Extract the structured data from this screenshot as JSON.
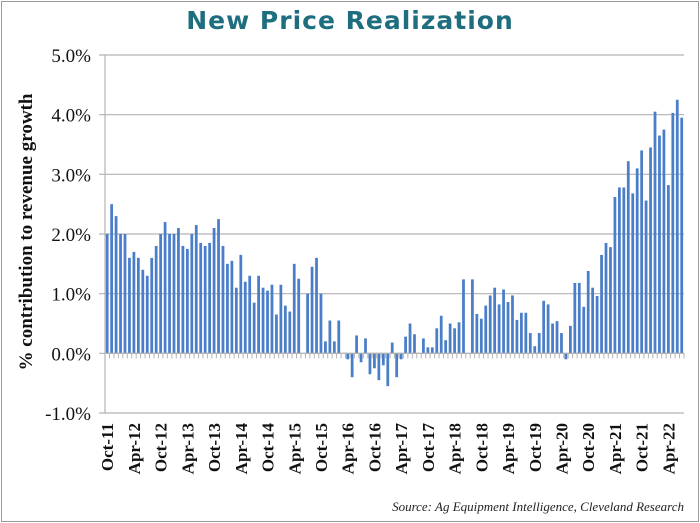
{
  "chart_data": {
    "type": "bar",
    "title": "New Price Realization",
    "xlabel": "",
    "ylabel": "% contribution to revenue growth",
    "ylim": [
      -1.0,
      5.0
    ],
    "yticks": [
      -1.0,
      0.0,
      1.0,
      2.0,
      3.0,
      4.0,
      5.0
    ],
    "ytick_labels": [
      "-1.0%",
      "0.0%",
      "1.0%",
      "2.0%",
      "3.0%",
      "4.0%",
      "5.0%"
    ],
    "grid": true,
    "legend": "none",
    "bar_color": "#4a7ec8",
    "x_start": "Oct-11",
    "x_frequency": "monthly",
    "xtick_labels": [
      "Oct-11",
      "Apr-12",
      "Oct-12",
      "Apr-13",
      "Oct-13",
      "Apr-14",
      "Oct-14",
      "Apr-15",
      "Oct-15",
      "Apr-16",
      "Oct-16",
      "Apr-17",
      "Oct-17",
      "Apr-18",
      "Oct-18",
      "Apr-19",
      "Oct-19",
      "Apr-20",
      "Oct-20",
      "Apr-21",
      "Oct-21",
      "Apr-22"
    ],
    "series": [
      {
        "name": "New Price Realization",
        "values": [
          2.0,
          2.5,
          2.3,
          2.0,
          2.0,
          1.6,
          1.7,
          1.6,
          1.4,
          1.3,
          1.6,
          1.8,
          2.0,
          2.2,
          2.0,
          2.0,
          2.1,
          1.8,
          1.75,
          2.0,
          2.15,
          1.85,
          1.8,
          1.85,
          2.1,
          2.25,
          1.8,
          1.5,
          1.55,
          1.1,
          1.65,
          1.2,
          1.3,
          0.85,
          1.3,
          1.1,
          1.05,
          1.15,
          0.65,
          1.15,
          0.8,
          0.7,
          1.5,
          1.25,
          0.0,
          1.0,
          1.45,
          1.6,
          1.0,
          0.2,
          0.55,
          0.2,
          0.55,
          0.0,
          -0.1,
          -0.4,
          0.3,
          -0.15,
          0.25,
          -0.35,
          -0.25,
          -0.45,
          -0.2,
          -0.55,
          0.18,
          -0.4,
          -0.1,
          0.28,
          0.5,
          0.32,
          0.0,
          0.25,
          0.1,
          0.1,
          0.42,
          0.63,
          0.22,
          0.5,
          0.42,
          0.52,
          1.24,
          0.0,
          1.24,
          0.66,
          0.58,
          0.8,
          0.97,
          1.1,
          0.82,
          1.07,
          0.86,
          0.97,
          0.56,
          0.68,
          0.68,
          0.34,
          0.12,
          0.34,
          0.88,
          0.82,
          0.5,
          0.54,
          0.34,
          -0.1,
          0.46,
          1.18,
          1.18,
          0.78,
          1.38,
          1.1,
          0.96,
          1.65,
          1.85,
          1.78,
          2.62,
          2.78,
          2.78,
          3.22,
          2.68,
          3.1,
          3.4,
          2.56,
          3.45,
          4.05,
          3.65,
          3.75,
          2.82,
          4.03,
          4.25,
          3.95
        ]
      }
    ],
    "source": "Source: Ag Equipment Intelligence, Cleveland Research"
  }
}
